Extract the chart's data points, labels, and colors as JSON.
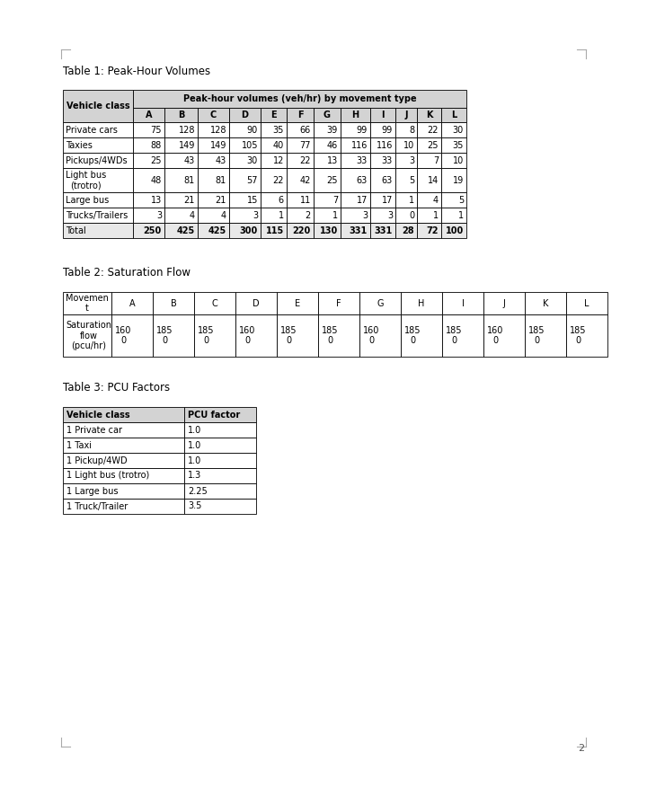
{
  "table1_title": "Table 1: Peak-Hour Volumes",
  "table1_movement_cols": [
    "A",
    "B",
    "C",
    "D",
    "E",
    "F",
    "G",
    "H",
    "I",
    "J",
    "K",
    "L"
  ],
  "table1_rows": [
    [
      "Private cars",
      "75",
      "128",
      "128",
      "90",
      "35",
      "66",
      "39",
      "99",
      "99",
      "8",
      "22",
      "30"
    ],
    [
      "Taxies",
      "88",
      "149",
      "149",
      "105",
      "40",
      "77",
      "46",
      "116",
      "116",
      "10",
      "25",
      "35"
    ],
    [
      "Pickups/4WDs",
      "25",
      "43",
      "43",
      "30",
      "12",
      "22",
      "13",
      "33",
      "33",
      "3",
      "7",
      "10"
    ],
    [
      "Light bus\n(trotro)",
      "48",
      "81",
      "81",
      "57",
      "22",
      "42",
      "25",
      "63",
      "63",
      "5",
      "14",
      "19"
    ],
    [
      "Large bus",
      "13",
      "21",
      "21",
      "15",
      "6",
      "11",
      "7",
      "17",
      "17",
      "1",
      "4",
      "5"
    ],
    [
      "Trucks/Trailers",
      "3",
      "4",
      "4",
      "3",
      "1",
      "2",
      "1",
      "3",
      "3",
      "0",
      "1",
      "1"
    ],
    [
      "Total",
      "250",
      "425",
      "425",
      "300",
      "115",
      "220",
      "130",
      "331",
      "331",
      "28",
      "72",
      "100"
    ]
  ],
  "table2_title": "Table 2: Saturation Flow",
  "table2_col0_h": [
    "Movemen\nt"
  ],
  "table2_cols": [
    "A",
    "B",
    "C",
    "D",
    "E",
    "F",
    "G",
    "H",
    "I",
    "J",
    "K",
    "L"
  ],
  "table2_sat_vals": [
    "1600",
    "1850",
    "1850",
    "1600",
    "1850",
    "1850",
    "1600",
    "1850",
    "1850",
    "1600",
    "1850",
    "1850"
  ],
  "table2_sat_label": "Saturation\nflow\n(pcu/hr)",
  "table3_title": "Table 3: PCU Factors",
  "table3_headers": [
    "Vehicle class",
    "PCU factor"
  ],
  "table3_rows": [
    [
      "1 Private car",
      "1.0"
    ],
    [
      "1 Taxi",
      "1.0"
    ],
    [
      "1 Pickup/4WD",
      "1.0"
    ],
    [
      "1 Light bus (trotro)",
      "1.3"
    ],
    [
      "1 Large bus",
      "2.25"
    ],
    [
      "1 Truck/Trailer",
      "3.5"
    ]
  ],
  "header_gray": "#d3d3d3",
  "total_gray": "#e8e8e8",
  "white": "#ffffff",
  "border_color": "#000000",
  "font_size": 7.0,
  "title_font_size": 8.5
}
